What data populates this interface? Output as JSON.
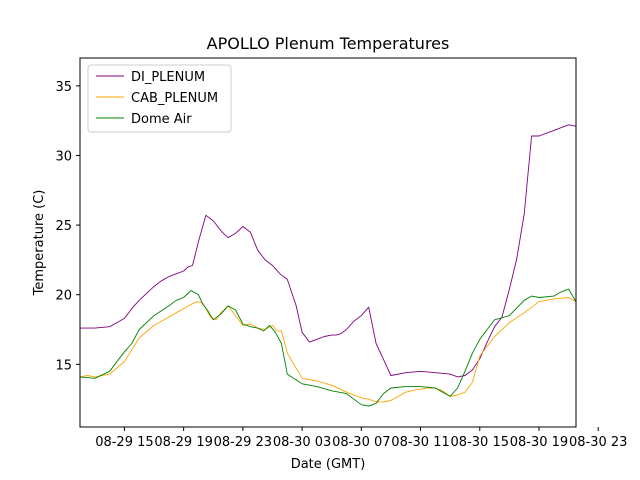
{
  "chart_data": {
    "type": "line",
    "title": "APOLLO Plenum Temperatures",
    "xlabel": "Date (GMT)",
    "ylabel": "Temperature (C)",
    "xlim": [
      0,
      33.5
    ],
    "ylim": [
      10.5,
      37
    ],
    "x_ticks": [
      {
        "value": 3,
        "label": "08-29 15"
      },
      {
        "value": 7,
        "label": "08-29 19"
      },
      {
        "value": 11,
        "label": "08-29 23"
      },
      {
        "value": 15,
        "label": "08-30 03"
      },
      {
        "value": 19,
        "label": "08-30 07"
      },
      {
        "value": 23,
        "label": "08-30 11"
      },
      {
        "value": 27,
        "label": "08-30 15"
      },
      {
        "value": 31,
        "label": "08-30 19"
      },
      {
        "value": 35,
        "label": "08-30 23"
      }
    ],
    "y_ticks": [
      {
        "value": 15,
        "label": "15"
      },
      {
        "value": 20,
        "label": "20"
      },
      {
        "value": 25,
        "label": "25"
      },
      {
        "value": 30,
        "label": "30"
      },
      {
        "value": 35,
        "label": "35"
      }
    ],
    "legend_position": "top-left",
    "series": [
      {
        "name": "DI_PLENUM",
        "color": "#800080",
        "x": [
          0,
          1,
          2,
          2.5,
          3,
          3.5,
          4,
          5,
          5.5,
          6,
          6.5,
          7,
          7.3,
          7.6,
          8,
          8.5,
          9,
          9.6,
          10,
          10.5,
          11,
          11.5,
          12,
          12.5,
          13,
          13.5,
          14,
          14.6,
          15,
          15.5,
          16,
          16.5,
          17,
          17.3,
          17.6,
          18,
          18.5,
          19,
          19.5,
          20,
          21,
          22,
          23,
          24,
          25,
          25.5,
          26,
          26.5,
          27,
          27.5,
          28,
          28.5,
          29,
          29.5,
          30,
          30.5,
          31,
          32,
          33,
          33.5
        ],
        "values": [
          17.6,
          17.6,
          17.7,
          18,
          18.3,
          19,
          19.6,
          20.6,
          21,
          21.3,
          21.5,
          21.7,
          22,
          22.1,
          23.8,
          25.7,
          25.3,
          24.5,
          24.1,
          24.4,
          24.9,
          24.5,
          23.2,
          22.5,
          22.1,
          21.5,
          21.1,
          19.2,
          17.3,
          16.6,
          16.8,
          17.0,
          17.1,
          17.1,
          17.2,
          17.5,
          18.1,
          18.5,
          19.1,
          16.5,
          14.2,
          14.4,
          14.5,
          14.4,
          14.3,
          14.1,
          14.2,
          14.6,
          15.4,
          16.6,
          17.7,
          18.4,
          20.4,
          22.6,
          25.8,
          31.4,
          31.4,
          31.8,
          32.2,
          32.1
        ]
      },
      {
        "name": "CAB_PLENUM",
        "color": "#ffa500",
        "x": [
          0,
          0.5,
          1,
          2,
          3,
          4,
          5,
          6,
          6.5,
          7,
          7.5,
          7.9,
          8.3,
          8.8,
          9.2,
          9.5,
          10,
          10.5,
          11,
          11.5,
          12,
          12.5,
          13,
          13.3,
          13.6,
          14,
          15,
          16,
          17,
          18,
          19,
          19.5,
          20,
          20.5,
          21,
          22,
          22.8,
          23.5,
          24,
          24.5,
          25,
          25.5,
          26,
          26.5,
          27,
          28,
          29,
          30,
          31,
          32,
          33,
          33.5
        ],
        "values": [
          14.1,
          14.2,
          14.1,
          14.3,
          15.2,
          16.9,
          17.8,
          18.4,
          18.7,
          19.0,
          19.3,
          19.5,
          19.4,
          18.4,
          18.2,
          18.7,
          19.2,
          18.5,
          17.8,
          17.9,
          17.6,
          17.5,
          17.8,
          17.4,
          17.4,
          15.8,
          14.0,
          13.8,
          13.5,
          13.0,
          12.6,
          12.5,
          12.3,
          12.3,
          12.4,
          13.0,
          13.2,
          13.3,
          13.3,
          13.1,
          12.7,
          12.8,
          13.0,
          13.7,
          15.6,
          17.0,
          18.0,
          18.7,
          19.5,
          19.7,
          19.8,
          19.5
        ]
      },
      {
        "name": "Dome Air",
        "color": "#008000",
        "x": [
          0,
          1,
          2,
          3,
          3.5,
          4,
          5,
          6,
          6.5,
          7,
          7.5,
          8,
          8.3,
          8.6,
          9,
          9.5,
          10,
          10.5,
          11,
          11.5,
          12,
          12.4,
          12.8,
          13.2,
          13.6,
          14,
          15,
          16,
          17,
          18,
          18.5,
          19,
          19.5,
          20,
          20.5,
          21,
          22,
          23,
          24,
          24.5,
          25,
          25.5,
          26,
          26.5,
          27,
          27.5,
          28,
          29,
          30,
          30.5,
          31,
          32,
          32.5,
          33,
          33.5
        ],
        "values": [
          14.1,
          14.0,
          14.5,
          15.9,
          16.5,
          17.5,
          18.5,
          19.2,
          19.6,
          19.8,
          20.3,
          20.0,
          19.3,
          18.9,
          18.2,
          18.6,
          19.2,
          18.9,
          17.9,
          17.7,
          17.6,
          17.4,
          17.8,
          17.3,
          16.5,
          14.3,
          13.6,
          13.4,
          13.1,
          12.9,
          12.5,
          12.1,
          12.0,
          12.2,
          12.9,
          13.3,
          13.4,
          13.4,
          13.3,
          13.0,
          12.7,
          13.3,
          14.5,
          15.8,
          16.8,
          17.5,
          18.2,
          18.5,
          19.6,
          19.9,
          19.8,
          19.9,
          20.2,
          20.4,
          19.5
        ]
      }
    ]
  }
}
